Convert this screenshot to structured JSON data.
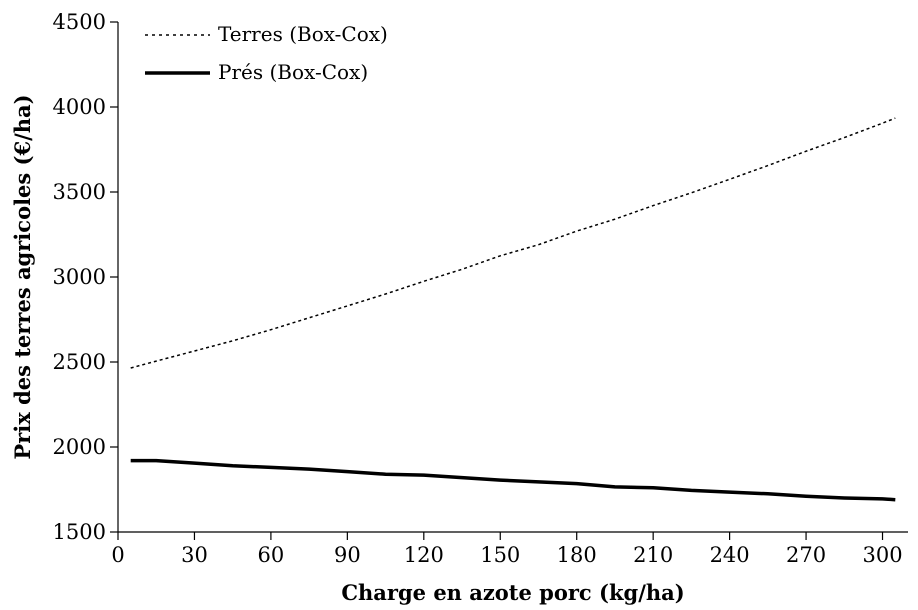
{
  "chart_data": {
    "type": "line",
    "title": "",
    "xlabel": "Charge en azote porc (kg/ha)",
    "ylabel": "Prix des terres agricoles (€/ha)",
    "xlim": [
      0,
      310
    ],
    "ylim": [
      1500,
      4500
    ],
    "xticks": [
      0,
      30,
      60,
      90,
      120,
      150,
      180,
      210,
      240,
      270,
      300
    ],
    "yticks": [
      1500,
      2000,
      2500,
      3000,
      3500,
      4000,
      4500
    ],
    "grid": false,
    "legend_position": "top-left",
    "series": [
      {
        "name": "Terres (Box-Cox)",
        "style": "dotted",
        "color": "#000000",
        "x": [
          5,
          15,
          30,
          45,
          60,
          75,
          90,
          105,
          120,
          135,
          150,
          165,
          180,
          195,
          210,
          225,
          240,
          255,
          270,
          285,
          300,
          305
        ],
        "values": [
          2465,
          2505,
          2565,
          2625,
          2690,
          2760,
          2830,
          2900,
          2975,
          3045,
          3125,
          3190,
          3270,
          3340,
          3420,
          3495,
          3575,
          3655,
          3740,
          3820,
          3905,
          3935
        ]
      },
      {
        "name": "Prés (Box-Cox)",
        "style": "solid",
        "color": "#000000",
        "x": [
          5,
          15,
          30,
          45,
          60,
          75,
          90,
          105,
          120,
          135,
          150,
          165,
          180,
          195,
          210,
          225,
          240,
          255,
          270,
          285,
          300,
          305
        ],
        "values": [
          1920,
          1920,
          1905,
          1890,
          1880,
          1870,
          1855,
          1840,
          1835,
          1820,
          1805,
          1795,
          1785,
          1765,
          1760,
          1745,
          1735,
          1725,
          1710,
          1700,
          1695,
          1690
        ]
      }
    ]
  }
}
